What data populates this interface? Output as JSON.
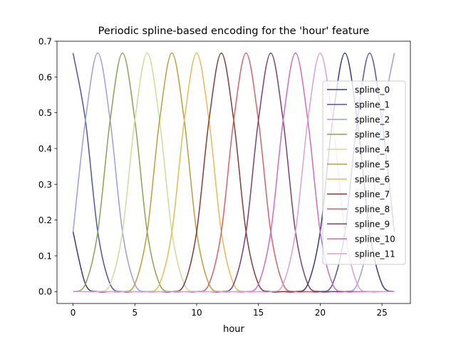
{
  "chart_data": {
    "type": "line",
    "title": "Periodic spline-based encoding for the 'hour' feature",
    "xlabel": "hour",
    "ylabel": "",
    "xlim": [
      -1.3,
      27.3
    ],
    "ylim": [
      -0.0333,
      0.7
    ],
    "xticks": [
      0,
      5,
      10,
      15,
      20,
      25
    ],
    "yticks": [
      0.0,
      0.1,
      0.2,
      0.3,
      0.4,
      0.5,
      0.6,
      0.7
    ],
    "grid": false,
    "legend": "right",
    "x": [
      0,
      1,
      2,
      3,
      4,
      5,
      6,
      7,
      8,
      9,
      10,
      11,
      12,
      13,
      14,
      15,
      16,
      17,
      18,
      19,
      20,
      21,
      22,
      23,
      24,
      25,
      26
    ],
    "series": [
      {
        "name": "spline_0",
        "color": "#393b79",
        "values": [
          0.167,
          0.021,
          0,
          0,
          0,
          0,
          0,
          0,
          0,
          0,
          0,
          0,
          0,
          0,
          0,
          0,
          0,
          0,
          0,
          0.021,
          0.167,
          0.479,
          0.667,
          0.479,
          0.167,
          0.021,
          0
        ]
      },
      {
        "name": "spline_1",
        "color": "#5254a3",
        "values": [
          0.667,
          0.479,
          0.167,
          0.021,
          0,
          0,
          0,
          0,
          0,
          0,
          0,
          0,
          0,
          0,
          0,
          0,
          0,
          0,
          0,
          0,
          0,
          0.021,
          0.167,
          0.479,
          0.667,
          0.479,
          0.167
        ]
      },
      {
        "name": "spline_2",
        "color": "#9c9ede",
        "values": [
          0.167,
          0.479,
          0.667,
          0.479,
          0.167,
          0.021,
          0,
          0,
          0,
          0,
          0,
          0,
          0,
          0,
          0,
          0,
          0,
          0,
          0,
          0,
          0,
          0,
          0,
          0.021,
          0.167,
          0.479,
          0.667
        ]
      },
      {
        "name": "spline_3",
        "color": "#8ca252",
        "values": [
          0,
          0.021,
          0.167,
          0.479,
          0.667,
          0.479,
          0.167,
          0.021,
          0,
          0,
          0,
          0,
          0,
          0,
          0,
          0,
          0,
          0,
          0,
          0,
          0,
          0,
          0,
          0,
          0,
          0,
          0
        ]
      },
      {
        "name": "spline_4",
        "color": "#cedb9c",
        "values": [
          0,
          0,
          0,
          0.021,
          0.167,
          0.479,
          0.667,
          0.479,
          0.167,
          0.021,
          0,
          0,
          0,
          0,
          0,
          0,
          0,
          0,
          0,
          0,
          0,
          0,
          0,
          0,
          0,
          0,
          0
        ]
      },
      {
        "name": "spline_5",
        "color": "#bd9e39",
        "values": [
          0,
          0,
          0,
          0,
          0,
          0.021,
          0.167,
          0.479,
          0.667,
          0.479,
          0.167,
          0.021,
          0,
          0,
          0,
          0,
          0,
          0,
          0,
          0,
          0,
          0,
          0,
          0,
          0,
          0,
          0
        ]
      },
      {
        "name": "spline_6",
        "color": "#e7ba52",
        "values": [
          0,
          0,
          0,
          0,
          0,
          0,
          0,
          0.021,
          0.167,
          0.479,
          0.667,
          0.479,
          0.167,
          0.021,
          0,
          0,
          0,
          0,
          0,
          0,
          0,
          0,
          0,
          0,
          0,
          0,
          0
        ]
      },
      {
        "name": "spline_7",
        "color": "#843c39",
        "values": [
          0,
          0,
          0,
          0,
          0,
          0,
          0,
          0,
          0,
          0.021,
          0.167,
          0.479,
          0.667,
          0.479,
          0.167,
          0.021,
          0,
          0,
          0,
          0,
          0,
          0,
          0,
          0,
          0,
          0,
          0
        ]
      },
      {
        "name": "spline_8",
        "color": "#d6616b",
        "values": [
          0,
          0,
          0,
          0,
          0,
          0,
          0,
          0,
          0,
          0,
          0,
          0.021,
          0.167,
          0.479,
          0.667,
          0.479,
          0.167,
          0.021,
          0,
          0,
          0,
          0,
          0,
          0,
          0,
          0,
          0
        ]
      },
      {
        "name": "spline_9",
        "color": "#7b4173",
        "values": [
          0,
          0,
          0,
          0,
          0,
          0,
          0,
          0,
          0,
          0,
          0,
          0,
          0,
          0.021,
          0.167,
          0.479,
          0.667,
          0.479,
          0.167,
          0.021,
          0,
          0,
          0,
          0,
          0,
          0,
          0
        ]
      },
      {
        "name": "spline_10",
        "color": "#ce6dbd",
        "values": [
          0,
          0,
          0,
          0,
          0,
          0,
          0,
          0,
          0,
          0,
          0,
          0,
          0,
          0,
          0,
          0.021,
          0.167,
          0.479,
          0.667,
          0.479,
          0.167,
          0.021,
          0,
          0,
          0,
          0,
          0
        ]
      },
      {
        "name": "spline_11",
        "color": "#de9ed6",
        "values": [
          0,
          0,
          0,
          0,
          0,
          0,
          0,
          0,
          0,
          0,
          0,
          0,
          0,
          0,
          0,
          0,
          0,
          0.021,
          0.167,
          0.479,
          0.667,
          0.479,
          0.167,
          0.021,
          0,
          0,
          0
        ]
      }
    ]
  }
}
